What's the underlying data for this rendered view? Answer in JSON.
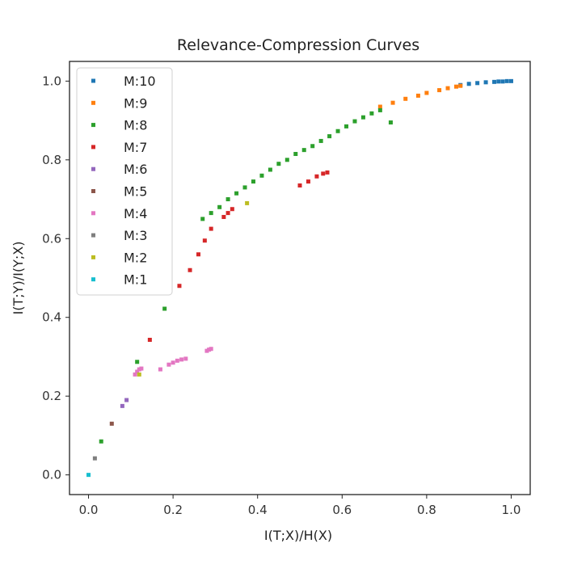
{
  "chart_data": {
    "type": "scatter",
    "title": "Relevance-Compression Curves",
    "xlabel": "I(T;X)/H(X)",
    "ylabel": "I(T;Y)/I(Y;X)",
    "xlim": [
      -0.045,
      1.045
    ],
    "ylim": [
      -0.05,
      1.05
    ],
    "xticks": [
      "0.0",
      "0.2",
      "0.4",
      "0.6",
      "0.8",
      "1.0"
    ],
    "xtick_values": [
      0.0,
      0.2,
      0.4,
      0.6,
      0.8,
      1.0
    ],
    "yticks": [
      "0.0",
      "0.2",
      "0.4",
      "0.6",
      "0.8",
      "1.0"
    ],
    "ytick_values": [
      0.0,
      0.2,
      0.4,
      0.6,
      0.8,
      1.0
    ],
    "grid": false,
    "legend_position": "top-left",
    "series": [
      {
        "name": "M:10",
        "color": "#1f77b4",
        "x": [
          0.88,
          0.9,
          0.92,
          0.94,
          0.96,
          0.97,
          0.98,
          0.99,
          1.0
        ],
        "y": [
          0.99,
          0.993,
          0.995,
          0.997,
          0.998,
          0.999,
          0.999,
          1.0,
          1.0
        ]
      },
      {
        "name": "M:9",
        "color": "#ff7f0e",
        "x": [
          0.69,
          0.72,
          0.75,
          0.78,
          0.8,
          0.83,
          0.85,
          0.87,
          0.88
        ],
        "y": [
          0.935,
          0.945,
          0.955,
          0.963,
          0.97,
          0.977,
          0.982,
          0.986,
          0.988
        ]
      },
      {
        "name": "M:8",
        "color": "#2ca02c",
        "x": [
          0.03,
          0.115,
          0.18,
          0.27,
          0.29,
          0.31,
          0.33,
          0.35,
          0.37,
          0.39,
          0.41,
          0.43,
          0.45,
          0.47,
          0.49,
          0.51,
          0.53,
          0.55,
          0.57,
          0.59,
          0.61,
          0.63,
          0.65,
          0.67,
          0.69,
          0.715
        ],
        "y": [
          0.085,
          0.287,
          0.422,
          0.65,
          0.665,
          0.68,
          0.7,
          0.715,
          0.73,
          0.745,
          0.76,
          0.775,
          0.79,
          0.8,
          0.815,
          0.825,
          0.835,
          0.848,
          0.86,
          0.873,
          0.885,
          0.898,
          0.908,
          0.918,
          0.926,
          0.895
        ]
      },
      {
        "name": "M:7",
        "color": "#d62728",
        "x": [
          0.145,
          0.215,
          0.24,
          0.26,
          0.275,
          0.29,
          0.32,
          0.33,
          0.34,
          0.5,
          0.52,
          0.54,
          0.555,
          0.565
        ],
        "y": [
          0.343,
          0.48,
          0.52,
          0.56,
          0.595,
          0.625,
          0.655,
          0.665,
          0.675,
          0.735,
          0.745,
          0.758,
          0.765,
          0.768
        ]
      },
      {
        "name": "M:6",
        "color": "#9467bd",
        "x": [
          0.08,
          0.09
        ],
        "y": [
          0.175,
          0.19
        ]
      },
      {
        "name": "M:5",
        "color": "#8c564b",
        "x": [
          0.055
        ],
        "y": [
          0.13
        ]
      },
      {
        "name": "M:4",
        "color": "#e377c2",
        "x": [
          0.11,
          0.115,
          0.12,
          0.125,
          0.17,
          0.19,
          0.2,
          0.21,
          0.22,
          0.23,
          0.28,
          0.285,
          0.29
        ],
        "y": [
          0.255,
          0.262,
          0.268,
          0.27,
          0.268,
          0.28,
          0.285,
          0.29,
          0.293,
          0.295,
          0.315,
          0.318,
          0.32
        ]
      },
      {
        "name": "M:3",
        "color": "#7f7f7f",
        "x": [
          0.015
        ],
        "y": [
          0.042
        ]
      },
      {
        "name": "M:2",
        "color": "#bcbd22",
        "x": [
          0.375,
          0.12
        ],
        "y": [
          0.69,
          0.255
        ]
      },
      {
        "name": "M:1",
        "color": "#17becf",
        "x": [
          0.0
        ],
        "y": [
          0.0
        ]
      }
    ]
  }
}
